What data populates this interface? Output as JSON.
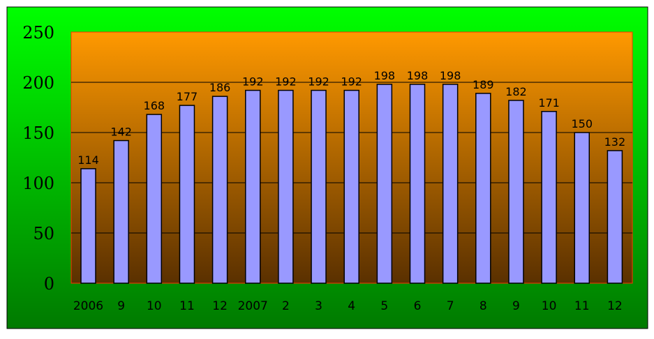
{
  "chart_data": {
    "type": "bar",
    "categories": [
      "2006",
      "9",
      "10",
      "11",
      "12",
      "2007",
      "2",
      "3",
      "4",
      "5",
      "6",
      "7",
      "8",
      "9",
      "10",
      "11",
      "12"
    ],
    "series": [
      {
        "values": [
          114,
          142,
          168,
          177,
          186,
          192,
          192,
          192,
          192,
          198,
          198,
          198,
          189,
          182,
          171,
          150,
          132
        ]
      }
    ],
    "data_labels": [
      "114",
      "142",
      "168",
      "177",
      "186",
      "192",
      "192",
      "192",
      "192",
      "198",
      "198",
      "198",
      "189",
      "182",
      "171",
      "150",
      "132"
    ],
    "yticks": [
      0,
      50,
      100,
      150,
      200,
      250
    ],
    "ylim": [
      0,
      250
    ],
    "grid": true,
    "legend": "none",
    "colors": {
      "outer_top": "#00ff00",
      "outer_bottom": "#007a00",
      "plot_top": "#ff9900",
      "plot_bottom": "#5a3000",
      "bar_fill": "#9999ff",
      "bar_stroke": "#000000",
      "plot_border": "#ff3300"
    }
  }
}
